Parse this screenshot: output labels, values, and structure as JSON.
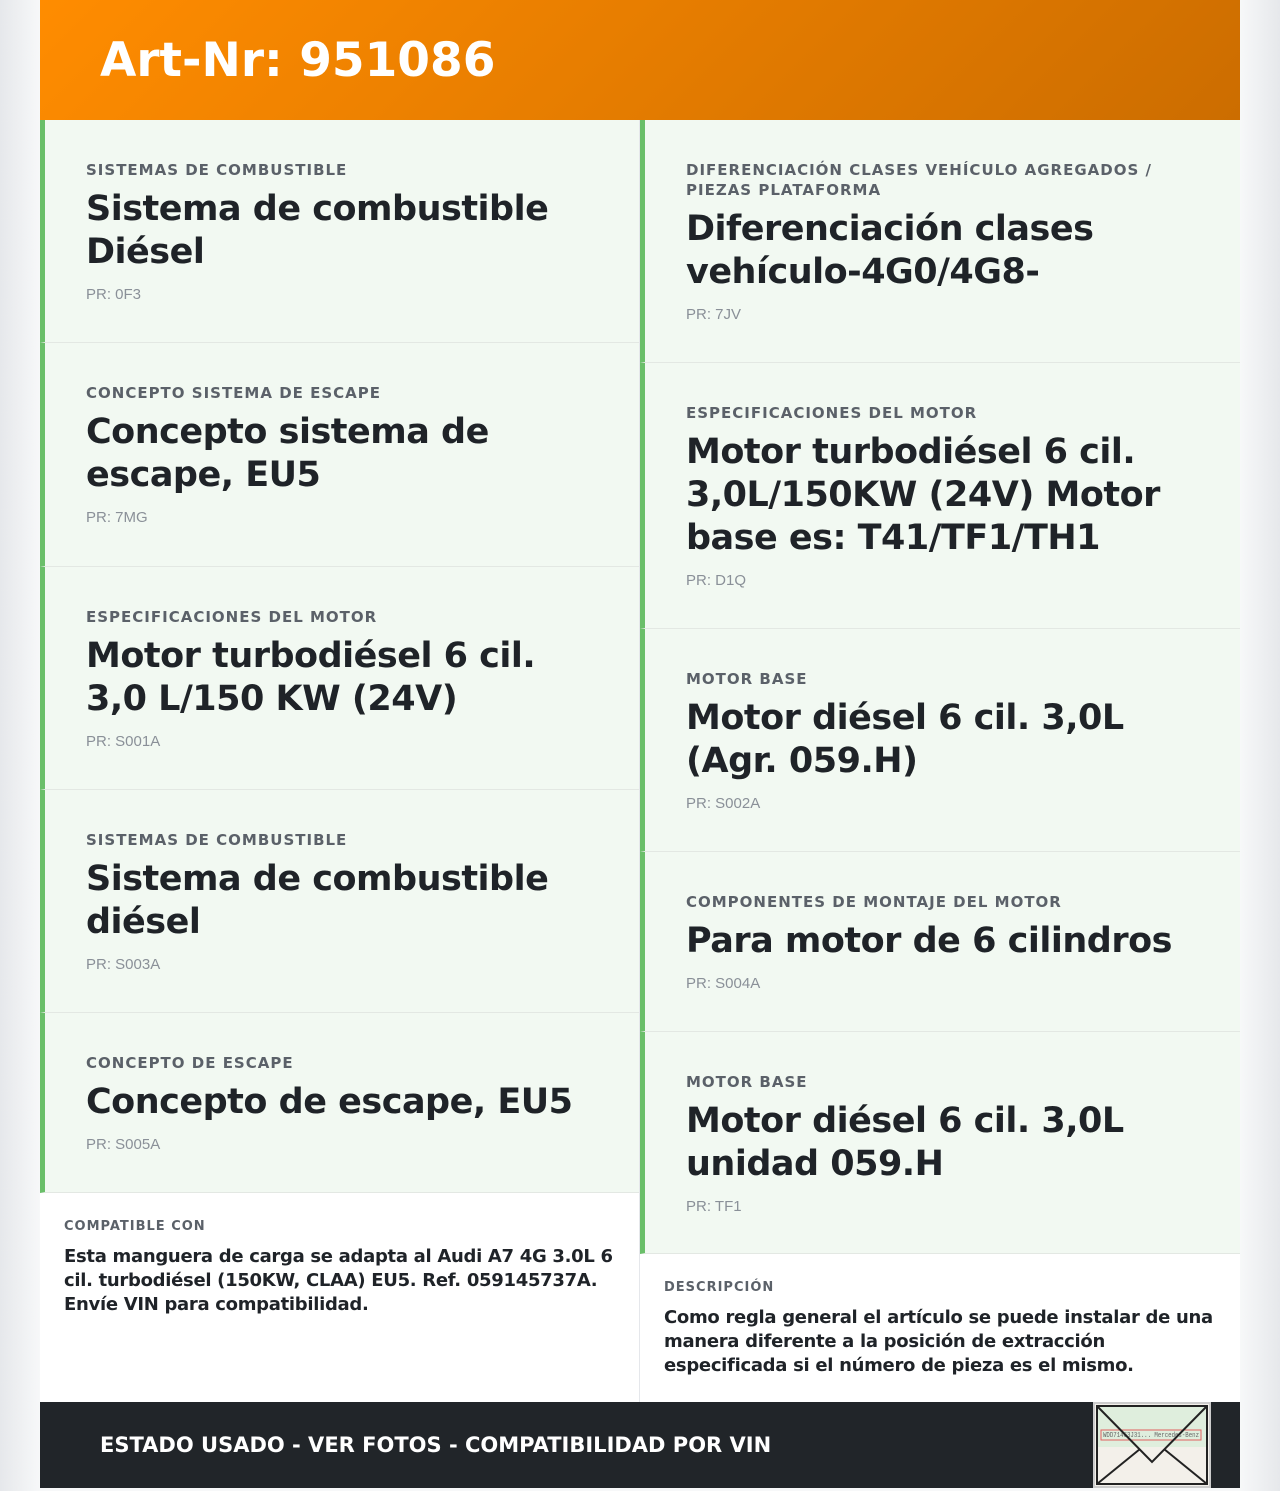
{
  "header": {
    "title": "Art-Nr: 951086"
  },
  "left_cards": [
    {
      "category": "SISTEMAS DE COMBUSTIBLE",
      "title": "Sistema de combustible Diésel",
      "pr": "PR: 0F3"
    },
    {
      "category": "CONCEPTO SISTEMA DE ESCAPE",
      "title": "Concepto sistema de escape, EU5",
      "pr": "PR: 7MG"
    },
    {
      "category": "ESPECIFICACIONES DEL MOTOR",
      "title": "Motor turbodiésel 6 cil. 3,0 L/150 KW (24V)",
      "pr": "PR: S001A"
    },
    {
      "category": "SISTEMAS DE COMBUSTIBLE",
      "title": "Sistema de combustible diésel",
      "pr": "PR: S003A"
    },
    {
      "category": "CONCEPTO DE ESCAPE",
      "title": "Concepto de escape, EU5",
      "pr": "PR: S005A"
    }
  ],
  "right_cards": [
    {
      "category": "DIFERENCIACIÓN CLASES VEHÍCULO AGREGADOS / PIEZAS PLATAFORMA",
      "title": "Diferenciación clases vehículo-4G0/4G8-",
      "pr": "PR: 7JV"
    },
    {
      "category": "ESPECIFICACIONES DEL MOTOR",
      "title": "Motor turbodiésel 6 cil. 3,0L/150KW (24V) Motor base es: T41/TF1/TH1",
      "pr": "PR: D1Q"
    },
    {
      "category": "MOTOR BASE",
      "title": "Motor diésel 6 cil. 3,0L (Agr. 059.H)",
      "pr": "PR: S002A"
    },
    {
      "category": "COMPONENTES DE MONTAJE DEL MOTOR",
      "title": "Para motor de 6 cilindros",
      "pr": "PR: S004A"
    },
    {
      "category": "MOTOR BASE",
      "title": "Motor diésel 6 cil. 3,0L unidad 059.H",
      "pr": "PR: TF1"
    }
  ],
  "compatible": {
    "label": "COMPATIBLE CON",
    "text": "Esta manguera de carga se adapta al Audi A7 4G 3.0L 6 cil. turbodiésel (150KW, CLAA) EU5. Ref. 059145737A. Envíe VIN para compatibilidad."
  },
  "description": {
    "label": "DESCRIPCIÓN",
    "text": "Como regla general el artículo se puede instalar de una manera diferente a la posición de extracción especificada si el número de pieza es el mismo."
  },
  "footer": {
    "text": "ESTADO USADO - VER FOTOS - COMPATIBILIDAD POR VIN",
    "vin_image_text": "WDD71463J31... Mercedes-Benz"
  },
  "colors": {
    "header_start": "#ff8c00",
    "header_end": "#cc6d00",
    "accent_green": "#6abf69",
    "footer_bg": "#212529"
  }
}
